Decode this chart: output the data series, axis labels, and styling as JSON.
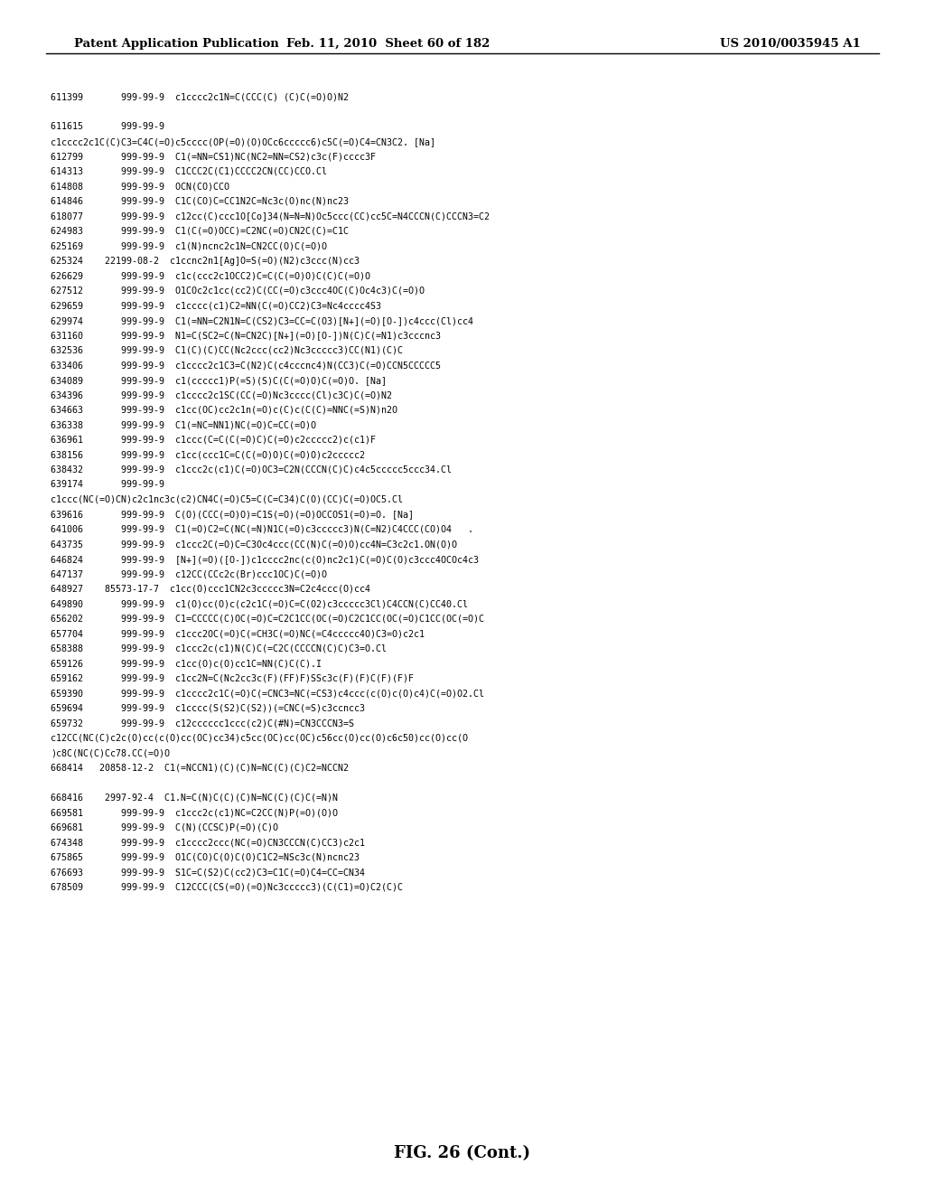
{
  "header_left": "Patent Application Publication",
  "header_mid": "Feb. 11, 2010  Sheet 60 of 182",
  "header_right": "US 2010/0035945 A1",
  "figure_caption": "FIG. 26 (Cont.)",
  "content_lines": [
    "",
    "611399       999-99-9  c1cccc2c1N=C(CCC(C) (C)C(=O)O)N2",
    "",
    "611615       999-99-9",
    "c1cccc2c1C(C)C3=C4C(=O)c5cccc(OP(=O)(O)OCc6ccccc6)c5C(=O)C4=CN3C2. [Na]",
    "612799       999-99-9  C1(=NN=CS1)NC(NC2=NN=CS2)c3c(F)cccc3F",
    "614313       999-99-9  C1CCC2C(C1)CCCC2CN(CC)CCO.Cl",
    "614808       999-99-9  OCN(CO)CCO",
    "614846       999-99-9  C1C(CO)C=CC1N2C=Nc3c(O)nc(N)nc23",
    "618077       999-99-9  c12cc(C)ccc1O[Co]34(N=N=N)Oc5ccc(CC)cc5C=N4CCCN(C)CCCN3=C2",
    "624983       999-99-9  C1(C(=O)OCC)=C2NC(=O)CN2C(C)=C1C",
    "625169       999-99-9  c1(N)ncnc2c1N=CN2CC(O)C(=O)O",
    "625324    22199-08-2  c1ccnc2n1[Ag]O=S(=O)(N2)c3ccc(N)cc3",
    "626629       999-99-9  c1c(ccc2c1OCC2)C=C(C(=O)O)C(C)C(=O)O",
    "627512       999-99-9  O1COc2c1cc(cc2)C(CC(=O)c3ccc4OC(C)Oc4c3)C(=O)O",
    "629659       999-99-9  c1cccc(c1)C2=NN(C(=O)CC2)C3=Nc4cccc4S3",
    "629974       999-99-9  C1(=NN=C2N1N=C(CS2)C3=CC=C(O3)[N+](=O)[O-])c4ccc(Cl)cc4",
    "631160       999-99-9  N1=C(SC2=C(N=CN2C)[N+](=O)[O-])N(C)C(=N1)c3cccnc3",
    "632536       999-99-9  C1(C)(C)CC(Nc2ccc(cc2)Nc3ccccc3)CC(N1)(C)C",
    "633406       999-99-9  c1cccc2c1C3=C(N2)C(c4cccnc4)N(CC3)C(=O)CCN5CCCCC5",
    "634089       999-99-9  c1(ccccc1)P(=S)(S)C(C(=O)O)C(=O)O. [Na]",
    "634396       999-99-9  c1cccc2c1SC(CC(=O)Nc3cccc(Cl)c3C)C(=O)N2",
    "634663       999-99-9  c1cc(OC)cc2c1n(=O)c(C)c(C(C)=NNC(=S)N)n2O",
    "636338       999-99-9  C1(=NC=NN1)NC(=O)C=CC(=O)O",
    "636961       999-99-9  c1ccc(C=C(C(=O)C)C(=O)c2ccccc2)c(c1)F",
    "638156       999-99-9  c1cc(ccc1C=C(C(=O)O)C(=O)O)c2ccccc2",
    "638432       999-99-9  c1ccc2c(c1)C(=O)OC3=C2N(CCCN(C)C)c4c5ccccc5ccc34.Cl",
    "639174       999-99-9",
    "c1ccc(NC(=O)CN)c2c1nc3c(c2)CN4C(=O)C5=C(C=C34)C(O)(CC)C(=O)OC5.Cl",
    "639616       999-99-9  C(O)(CCC(=O)O)=C1S(=O)(=O)OCCOS1(=O)=O. [Na]",
    "641006       999-99-9  C1(=O)C2=C(NC(=N)N1C(=O)c3ccccc3)N(C=N2)C4CCC(CO)O4   .",
    "643735       999-99-9  c1ccc2C(=O)C=C3Oc4ccc(CC(N)C(=O)O)cc4N=C3c2c1.ON(O)O",
    "646824       999-99-9  [N+](=O)([O-])c1cccc2nc(c(O)nc2c1)C(=O)C(O)c3ccc4OCOc4c3",
    "647137       999-99-9  c12CC(CCc2c(Br)ccc1OC)C(=O)O",
    "648927    85573-17-7  c1cc(O)ccc1CN2c3ccccc3N=C2c4ccc(O)cc4",
    "649890       999-99-9  c1(O)cc(O)c(c2c1C(=O)C=C(O2)c3ccccc3Cl)C4CCN(C)CC40.Cl",
    "656202       999-99-9  C1=CCCCC(C)OC(=O)C=C2C1CC(OC(=O)C2C1CC(OC(=O)C1CC(OC(=O)C",
    "657704       999-99-9  c1ccc2OC(=O)C(=CH3C(=O)NC(=C4ccccc4O)C3=O)c2c1",
    "658388       999-99-9  c1ccc2c(c1)N(C)C(=C2C(CCCCN(C)C)C3=O.Cl",
    "659126       999-99-9  c1cc(O)c(O)cc1C=NN(C)C(C).I",
    "659162       999-99-9  c1cc2N=C(Nc2cc3c(F)(FF)F)SSc3c(F)(F)C(F)(F)F",
    "659390       999-99-9  c1cccc2c1C(=O)C(=CNC3=NC(=CS3)c4ccc(c(O)c(O)c4)C(=O)O2.Cl",
    "659694       999-99-9  c1cccc(S(S2)C(S2))(=CNC(=S)c3ccncc3",
    "659732       999-99-9  c12cccccc1ccc(c2)C(#N)=CN3CCCN3=S",
    "c12CC(NC(C)c2c(O)cc(c(O)cc(OC)cc34)c5cc(OC)cc(OC)c56cc(O)cc(O)c6c50)cc(O)cc(O",
    ")c8C(NC(C)Cc78.CC(=O)O",
    "668414   20858-12-2  C1(=NCCN1)(C)(C)N=NC(C)(C)C2=NCCN2",
    "",
    "668416    2997-92-4  C1.N=C(N)C(C)(C)N=NC(C)(C)C(=N)N",
    "669581       999-99-9  c1ccc2c(c1)NC=C2CC(N)P(=O)(O)O",
    "669681       999-99-9  C(N)(CCSC)P(=O)(C)O",
    "674348       999-99-9  c1cccc2ccc(NC(=O)CN3CCCN(C)CC3)c2c1",
    "675865       999-99-9  O1C(CO)C(O)C(O)C1C2=NSc3c(N)ncnc23",
    "676693       999-99-9  S1C=C(S2)C(cc2)C3=C1C(=O)C4=CC=CN34",
    "678509       999-99-9  C12CCC(CS(=O)(=O)Nc3ccccc3)(C(C1)=O)C2(C)C"
  ]
}
